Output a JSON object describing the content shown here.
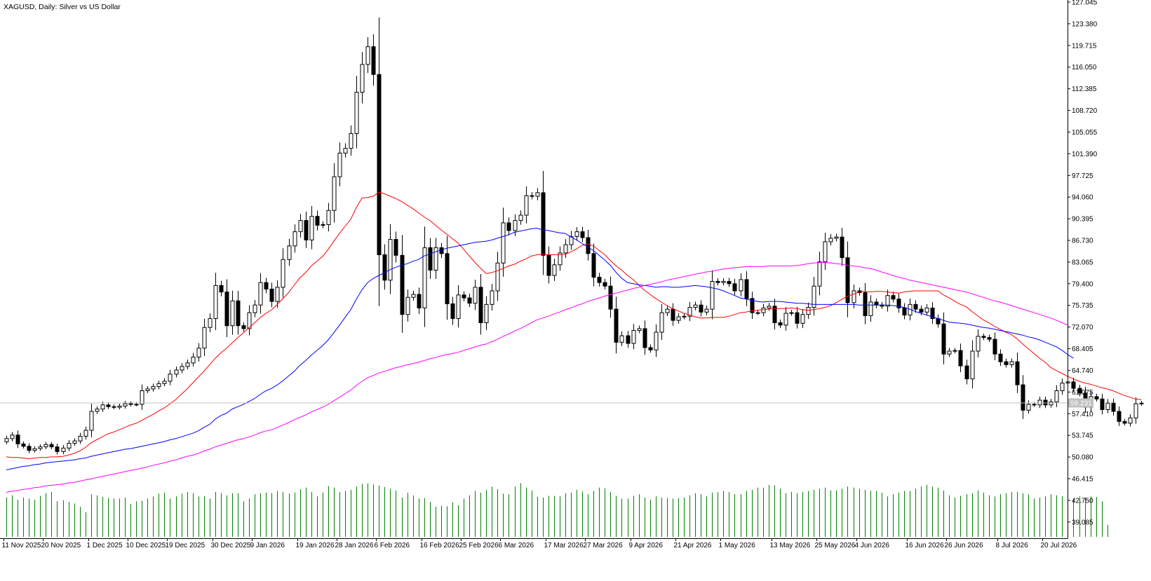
{
  "header": {
    "title": "XAGUSD, Daily:  Silver vs US Dollar"
  },
  "price_marker": {
    "label": "59.231",
    "value": 59.231
  },
  "colors": {
    "background": "#ffffff",
    "axis": "#000000",
    "candle_border": "#000000",
    "bull_body": "#ffffff",
    "bear_body": "#000000",
    "ma_fast": "#ff0000",
    "ma_mid": "#0000ff",
    "ma_slow": "#ff00ff",
    "volume": "#008000",
    "price_line": "#c0c0c0",
    "marker_bg": "#c0c0c0",
    "marker_text": "#ffffff"
  },
  "chart_data": {
    "type": "candlestick",
    "title": "XAGUSD, Daily:  Silver vs US Dollar",
    "ylim": [
      38.0,
      127.045
    ],
    "y_ticks": [
      "127.045",
      "123.380",
      "119.715",
      "116.050",
      "112.385",
      "108.720",
      "105.055",
      "101.390",
      "97.725",
      "94.060",
      "90.395",
      "86.730",
      "83.065",
      "79.400",
      "75.735",
      "72.070",
      "68.405",
      "64.740",
      "61.075",
      "57.410",
      "53.745",
      "50.080",
      "46.415",
      "42.750",
      "39.085"
    ],
    "x_ticks": [
      "11 Nov 2025",
      "20 Nov 2025",
      "1 Dec 2025",
      "10 Dec 2025",
      "19 Dec 2025",
      "30 Dec 2025",
      "9 Jan 2026",
      "19 Jan 2026",
      "28 Jan 2026",
      "6 Feb 2026",
      "16 Feb 2026",
      "25 Feb 2026",
      "6 Mar 2026",
      "17 Mar 2026",
      "27 Mar 2026",
      "9 Apr 2026",
      "21 Apr 2026",
      "1 May 2026",
      "13 May 2026",
      "25 May 2026",
      "4 Jun 2026",
      "16 Jun 2026",
      "26 Jun 2026",
      "8 Jul 2026",
      "20 Jul 2026"
    ],
    "x_tick_positions": [
      0,
      7,
      15,
      22,
      29,
      37,
      44,
      52,
      59,
      66,
      74,
      81,
      88,
      96,
      103,
      111,
      119,
      127,
      136,
      144,
      151,
      160,
      167,
      176,
      184
    ],
    "closes": [
      53.2,
      53.8,
      52.3,
      51.9,
      51.2,
      51.5,
      51.8,
      52.2,
      51.8,
      51.0,
      51.6,
      52.4,
      52.8,
      53.6,
      54.6,
      57.8,
      58.2,
      58.9,
      58.6,
      58.5,
      58.7,
      59.1,
      59.0,
      59.0,
      61.3,
      61.6,
      62.0,
      62.5,
      62.9,
      64.1,
      64.8,
      65.4,
      66.0,
      67.0,
      68.5,
      72.0,
      73.5,
      79.1,
      78.0,
      72.3,
      76.5,
      72.3,
      71.8,
      74.5,
      75.8,
      79.6,
      78.5,
      76.4,
      78.8,
      83.5,
      85.8,
      88.2,
      90.1,
      86.8,
      90.8,
      89.3,
      89.4,
      91.8,
      97.5,
      101.5,
      102.3,
      104.8,
      111.8,
      116.5,
      119.5,
      114.8,
      84.3,
      80.0,
      86.9,
      84.2,
      74.2,
      77.1,
      77.6,
      75.3,
      85.5,
      81.7,
      85.5,
      84.5,
      76.0,
      73.5,
      77.5,
      77.0,
      76.1,
      78.8,
      72.8,
      75.9,
      78.2,
      82.9,
      89.7,
      88.4,
      90.1,
      91.0,
      94.3,
      94.2,
      94.8,
      84.2,
      80.8,
      82.6,
      84.6,
      86.0,
      87.4,
      88.2,
      87.2,
      84.5,
      80.5,
      79.6,
      79.0,
      75.1,
      69.5,
      70.6,
      69.3,
      71.5,
      71.8,
      68.6,
      68.2,
      71.2,
      74.5,
      75.1,
      73.2,
      73.8,
      73.9,
      75.4,
      75.8,
      74.6,
      75.1,
      79.8,
      79.6,
      79.8,
      79.4,
      78.2,
      80.1,
      76.9,
      74.5,
      74.5,
      75.3,
      75.6,
      72.8,
      72.4,
      74.4,
      74.5,
      72.7,
      74.2,
      75.4,
      79.0,
      83.1,
      86.5,
      87.1,
      87.3,
      83.8,
      76.2,
      78.2,
      77.9,
      74.0,
      76.3,
      75.8,
      75.6,
      77.4,
      76.8,
      75.3,
      74.1,
      75.9,
      75.1,
      74.6,
      75.3,
      73.5,
      72.6,
      67.5,
      68.0,
      68.1,
      65.5,
      63.3,
      68.0,
      70.5,
      70.3,
      70.0,
      67.5,
      66.2,
      65.7,
      66.2,
      62.3,
      58.0,
      59.0,
      58.9,
      59.7,
      58.9,
      59.4,
      61.3,
      62.6,
      62.8,
      61.7,
      60.9,
      58.5,
      60.3,
      59.9,
      58.1,
      59.2,
      57.8,
      56.1,
      55.8,
      56.7,
      59.1,
      59.2
    ],
    "series": [
      {
        "name": "",
        "color": "#ff0000",
        "values": [
          50.1,
          50.0,
          50.0,
          49.9,
          49.8,
          49.9,
          50.0,
          50.0,
          50.1,
          50.1,
          50.2,
          50.4,
          50.7,
          51.1,
          51.7,
          52.5,
          53.0,
          53.5,
          54.0,
          54.3,
          54.7,
          55.1,
          55.5,
          55.8,
          56.3,
          56.8,
          57.3,
          57.9,
          58.4,
          59.1,
          59.8,
          60.7,
          61.6,
          62.6,
          63.6,
          64.6,
          65.7,
          66.8,
          67.7,
          68.5,
          69.4,
          70.3,
          71.1,
          72.0,
          72.8,
          73.7,
          74.4,
          75.0,
          75.9,
          76.9,
          77.9,
          79.2,
          80.4,
          81.3,
          82.4,
          83.2,
          84.0,
          85.2,
          86.6,
          87.9,
          89.1,
          90.3,
          92.3,
          93.9,
          94.0,
          94.2,
          94.9,
          94.6,
          94.2,
          93.8,
          93.3,
          92.7,
          92.1,
          91.4,
          90.7,
          90.1,
          89.3,
          88.5,
          87.8,
          87.0,
          86.3,
          85.2,
          84.1,
          83.0,
          82.0,
          81.1,
          81.3,
          81.6,
          82.0,
          82.4,
          82.7,
          83.2,
          83.6,
          84.1,
          84.3,
          84.4,
          84.3,
          84.3,
          84.3,
          84.4,
          84.8,
          85.3,
          85.9,
          86.1,
          85.8,
          85.0,
          84.3,
          83.3,
          82.4,
          81.7,
          80.8,
          80.1,
          79.2,
          78.3,
          77.6,
          76.9,
          76.3,
          75.7,
          75.2,
          74.8,
          74.4,
          74.1,
          73.8,
          73.6,
          73.6,
          73.7,
          73.7,
          73.7,
          73.9,
          74.2,
          74.5,
          74.6,
          74.8,
          74.9,
          75.0,
          75.1,
          75.2,
          75.2,
          75.2,
          75.3,
          75.2,
          75.0,
          74.9,
          75.0,
          75.2,
          75.4,
          75.7,
          76.2,
          76.8,
          77.3,
          77.6,
          78.0,
          78.1,
          78.0,
          78.1,
          78.1,
          78.0,
          77.9,
          77.8,
          78.0,
          78.1,
          78.2,
          78.2,
          78.2,
          78.2,
          78.2,
          77.5,
          77.0,
          76.4,
          75.9,
          75.5,
          74.7,
          74.0,
          73.3,
          72.8,
          72.2,
          71.7,
          71.2,
          70.8,
          70.1,
          69.2,
          68.4,
          67.6,
          66.8,
          66.1,
          65.2,
          64.7,
          64.2,
          63.7,
          63.3,
          62.9,
          62.6,
          62.4,
          62.1,
          61.8,
          61.6,
          61.3,
          60.9,
          60.5,
          60.2,
          59.9,
          59.8
        ]
      },
      {
        "name": "",
        "color": "#0000ff",
        "values": [
          47.9,
          48.1,
          48.3,
          48.5,
          48.6,
          48.8,
          48.9,
          49.1,
          49.2,
          49.3,
          49.4,
          49.5,
          49.6,
          49.8,
          49.9,
          50.2,
          50.4,
          50.6,
          50.8,
          51.0,
          51.2,
          51.4,
          51.5,
          51.7,
          51.9,
          52.1,
          52.3,
          52.5,
          52.7,
          53.0,
          53.2,
          53.5,
          53.8,
          54.1,
          54.5,
          55.1,
          55.6,
          56.5,
          57.1,
          57.5,
          58.2,
          58.6,
          59.0,
          59.5,
          60.0,
          60.7,
          61.3,
          61.7,
          62.3,
          63.0,
          63.8,
          64.6,
          65.6,
          66.4,
          67.3,
          68.1,
          68.9,
          69.9,
          71.1,
          72.4,
          73.7,
          75.0,
          76.8,
          78.4,
          79.6,
          80.3,
          80.8,
          81.3,
          81.8,
          82.2,
          82.5,
          82.8,
          83.2,
          83.5,
          84.1,
          84.4,
          84.8,
          85.1,
          85.4,
          85.6,
          85.8,
          86.0,
          86.2,
          86.4,
          86.5,
          86.6,
          86.8,
          87.1,
          87.4,
          87.7,
          88.1,
          88.3,
          88.5,
          88.7,
          88.8,
          88.5,
          88.4,
          88.2,
          88.0,
          87.9,
          87.3,
          86.8,
          86.2,
          85.6,
          85.0,
          84.2,
          83.4,
          82.5,
          81.3,
          80.3,
          79.6,
          79.4,
          79.2,
          79.1,
          79.0,
          78.8,
          78.9,
          78.9,
          78.8,
          78.8,
          78.9,
          79.0,
          79.1,
          79.0,
          78.9,
          78.7,
          78.5,
          78.2,
          77.8,
          77.4,
          77.0,
          76.8,
          76.6,
          76.4,
          76.3,
          76.4,
          76.4,
          76.4,
          76.3,
          76.2,
          76.1,
          76.1,
          76.0,
          75.9,
          75.9,
          75.9,
          75.9,
          75.9,
          75.9,
          75.9,
          75.9,
          75.8,
          75.8,
          75.8,
          75.8,
          75.8,
          75.8,
          75.7,
          75.6,
          75.4,
          75.1,
          74.7,
          74.4,
          74.1,
          73.8,
          73.5,
          73.2,
          72.9,
          72.8,
          72.7,
          72.6,
          72.4,
          72.2,
          72.0,
          71.9,
          71.7,
          71.5,
          71.3,
          71.1,
          70.9,
          70.7,
          70.4,
          70.2,
          69.9,
          69.5,
          69.1,
          68.7,
          68.1,
          67.4,
          66.8
        ]
      },
      {
        "name": "",
        "color": "#ff00ff",
        "values": [
          44.1,
          44.3,
          44.4,
          44.6,
          44.7,
          44.9,
          45.0,
          45.2,
          45.3,
          45.4,
          45.5,
          45.7,
          45.8,
          46.0,
          46.2,
          46.4,
          46.6,
          46.8,
          47.0,
          47.2,
          47.4,
          47.6,
          47.8,
          48.0,
          48.2,
          48.4,
          48.7,
          48.9,
          49.1,
          49.4,
          49.6,
          49.9,
          50.2,
          50.4,
          50.7,
          51.1,
          51.4,
          51.8,
          52.1,
          52.4,
          52.7,
          53.0,
          53.2,
          53.5,
          53.8,
          54.2,
          54.5,
          54.7,
          55.1,
          55.5,
          55.9,
          56.4,
          56.8,
          57.2,
          57.7,
          58.1,
          58.5,
          59.0,
          59.6,
          60.2,
          60.8,
          61.4,
          62.2,
          62.9,
          63.5,
          63.9,
          64.3,
          64.6,
          64.9,
          65.2,
          65.4,
          65.7,
          65.9,
          66.1,
          66.4,
          66.7,
          66.9,
          67.2,
          67.4,
          67.6,
          67.8,
          68.1,
          68.4,
          68.7,
          69.0,
          69.2,
          69.6,
          70.0,
          70.5,
          70.9,
          71.4,
          71.8,
          72.3,
          72.8,
          73.3,
          73.6,
          73.9,
          74.3,
          74.6,
          75.0,
          75.3,
          75.7,
          76.0,
          76.4,
          76.7,
          77.0,
          77.3,
          77.6,
          77.8,
          78.1,
          78.3,
          78.6,
          78.8,
          79.1,
          79.3,
          79.5,
          79.7,
          80.0,
          80.2,
          80.4,
          80.6,
          80.8,
          81.0,
          81.2,
          81.4,
          81.5,
          81.7,
          81.9,
          82.0,
          82.1,
          82.2,
          82.3,
          82.3,
          82.3,
          82.3,
          82.4,
          82.4,
          82.4,
          82.4,
          82.4,
          82.5,
          82.6,
          82.8,
          82.9,
          83.0,
          83.0,
          82.9,
          82.8,
          82.7,
          82.5,
          82.4,
          82.3,
          82.1,
          82.0,
          81.7,
          81.4,
          81.1,
          80.8,
          80.5,
          80.3,
          80.0,
          79.8,
          79.6,
          79.4,
          79.2,
          79.0,
          78.8,
          78.6,
          78.4,
          78.2,
          78.0,
          77.7,
          77.4,
          77.1,
          76.8,
          76.5,
          76.3,
          76.0,
          75.7,
          75.4,
          75.1,
          74.8,
          74.5,
          74.2,
          73.9,
          73.6,
          73.2,
          72.8,
          72.4
        ]
      }
    ],
    "volume": {
      "ymax": 1.0,
      "values": [
        0.72,
        0.76,
        0.68,
        0.72,
        0.7,
        0.68,
        0.75,
        0.8,
        0.82,
        0.65,
        0.67,
        0.64,
        0.61,
        0.55,
        0.45,
        0.78,
        0.76,
        0.73,
        0.71,
        0.7,
        0.7,
        0.72,
        0.6,
        0.65,
        0.66,
        0.7,
        0.74,
        0.79,
        0.81,
        0.7,
        0.74,
        0.79,
        0.82,
        0.8,
        0.74,
        0.74,
        0.7,
        0.82,
        0.8,
        0.76,
        0.8,
        0.8,
        0.65,
        0.7,
        0.78,
        0.8,
        0.81,
        0.8,
        0.84,
        0.82,
        0.79,
        0.81,
        0.87,
        0.9,
        0.82,
        0.74,
        0.81,
        0.93,
        0.9,
        0.82,
        0.84,
        0.86,
        0.92,
        0.97,
        0.98,
        0.96,
        0.94,
        0.91,
        0.88,
        0.85,
        0.72,
        0.81,
        0.76,
        0.7,
        0.71,
        0.64,
        0.55,
        0.57,
        0.56,
        0.63,
        0.58,
        0.7,
        0.76,
        0.84,
        0.81,
        0.86,
        0.92,
        0.87,
        0.79,
        0.78,
        0.92,
        0.98,
        0.9,
        0.85,
        0.73,
        0.72,
        0.75,
        0.75,
        0.74,
        0.8,
        0.81,
        0.86,
        0.83,
        0.78,
        0.84,
        0.9,
        0.89,
        0.82,
        0.75,
        0.7,
        0.7,
        0.75,
        0.78,
        0.72,
        0.68,
        0.74,
        0.72,
        0.71,
        0.7,
        0.71,
        0.72,
        0.76,
        0.8,
        0.78,
        0.74,
        0.81,
        0.82,
        0.84,
        0.82,
        0.78,
        0.78,
        0.84,
        0.86,
        0.9,
        0.9,
        0.95,
        0.94,
        0.88,
        0.8,
        0.82,
        0.8,
        0.82,
        0.84,
        0.86,
        0.88,
        0.9,
        0.85,
        0.85,
        0.88,
        0.92,
        0.9,
        0.88,
        0.86,
        0.84,
        0.84,
        0.81,
        0.74,
        0.78,
        0.81,
        0.84,
        0.84,
        0.88,
        0.92,
        0.95,
        0.92,
        0.9,
        0.85,
        0.76,
        0.72,
        0.75,
        0.78,
        0.8,
        0.85,
        0.81,
        0.76,
        0.74,
        0.78,
        0.8,
        0.82,
        0.82,
        0.8,
        0.78,
        0.7,
        0.72,
        0.74,
        0.78,
        0.76,
        0.74,
        0.82,
        0.7,
        0.74,
        0.72,
        0.74,
        0.73,
        0.65,
        0.22
      ]
    },
    "grid": false,
    "last_price": 59.231
  }
}
